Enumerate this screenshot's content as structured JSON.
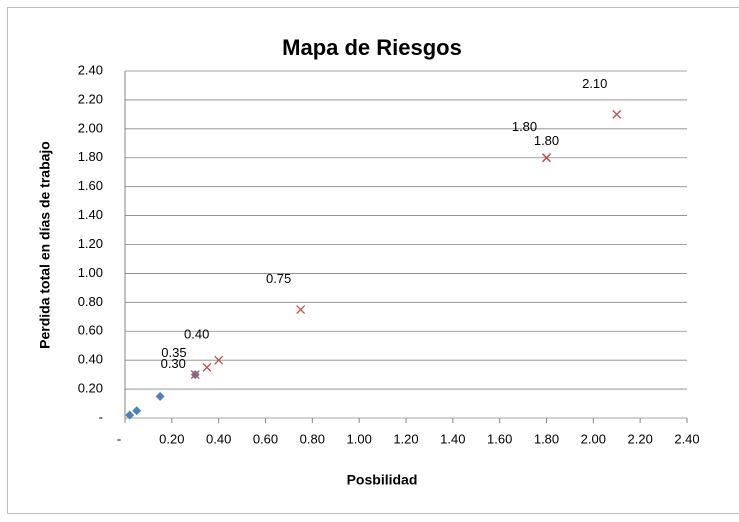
{
  "chart_data": {
    "type": "scatter",
    "title": "Mapa de Riesgos",
    "x_label": "Posbilidad",
    "y_label": "Perdida total en días de trabajo",
    "xlim": [
      0,
      2.4
    ],
    "ylim": [
      0,
      2.4
    ],
    "xticks": [
      {
        "value": 0,
        "label": "-"
      },
      {
        "value": 0.2,
        "label": "0.20"
      },
      {
        "value": 0.4,
        "label": "0.40"
      },
      {
        "value": 0.6,
        "label": "0.60"
      },
      {
        "value": 0.8,
        "label": "0.80"
      },
      {
        "value": 1.0,
        "label": "1.00"
      },
      {
        "value": 1.2,
        "label": "1.20"
      },
      {
        "value": 1.4,
        "label": "1.40"
      },
      {
        "value": 1.6,
        "label": "1.60"
      },
      {
        "value": 1.8,
        "label": "1.80"
      },
      {
        "value": 2.0,
        "label": "2.00"
      },
      {
        "value": 2.2,
        "label": "2.20"
      },
      {
        "value": 2.4,
        "label": "2.40"
      }
    ],
    "yticks": [
      {
        "value": 0,
        "label": "-"
      },
      {
        "value": 0.2,
        "label": "0.20"
      },
      {
        "value": 0.4,
        "label": "0.40"
      },
      {
        "value": 0.6,
        "label": "0.60"
      },
      {
        "value": 0.8,
        "label": "0.80"
      },
      {
        "value": 1.0,
        "label": "1.00"
      },
      {
        "value": 1.2,
        "label": "1.20"
      },
      {
        "value": 1.4,
        "label": "1.40"
      },
      {
        "value": 1.6,
        "label": "1.60"
      },
      {
        "value": 1.8,
        "label": "1.80"
      },
      {
        "value": 2.0,
        "label": "2.00"
      },
      {
        "value": 2.2,
        "label": "2.20"
      },
      {
        "value": 2.4,
        "label": "2.40"
      }
    ],
    "grid": true,
    "series": [
      {
        "color": "#4f81bd",
        "marker": "diamond",
        "x": [
          0.02,
          0.05,
          0.15,
          0.3
        ],
        "values": [
          0.02,
          0.05,
          0.15,
          0.3
        ]
      },
      {
        "color": "#c0504d",
        "marker": "x",
        "x": [
          0.3,
          0.35,
          0.4,
          0.75,
          1.8,
          1.8,
          2.1
        ],
        "values": [
          0.3,
          0.35,
          0.4,
          0.75,
          1.8,
          1.8,
          2.1
        ],
        "value_labels": [
          "0.30",
          "0.35",
          "0.40",
          "0.75",
          "1.80",
          "1.80",
          "2.10"
        ]
      }
    ]
  }
}
